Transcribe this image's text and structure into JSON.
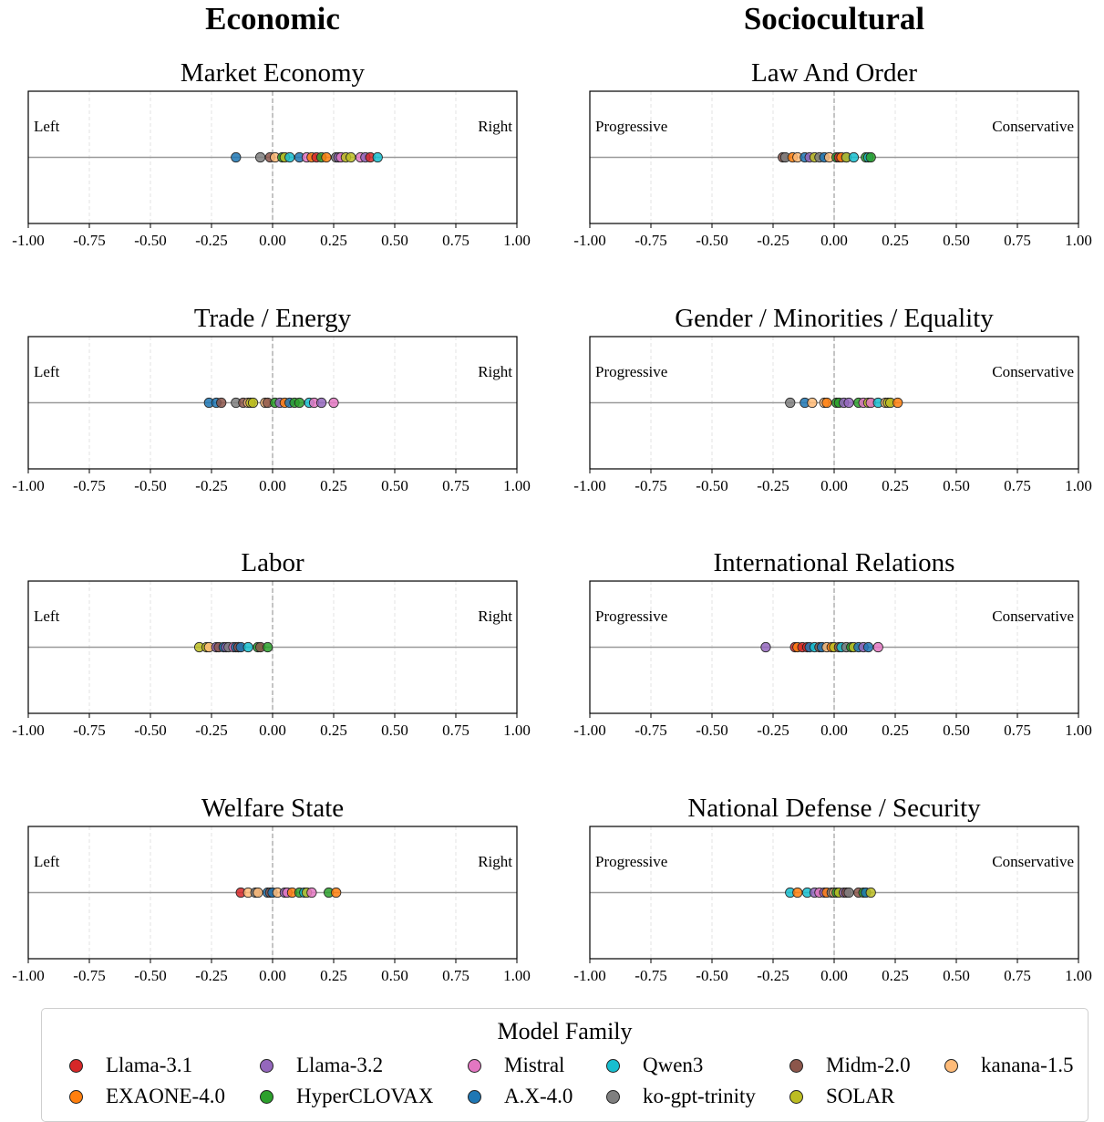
{
  "column_titles": [
    "Economic",
    "Sociocultural"
  ],
  "colors": {
    "Llama-3.1": "#d62728",
    "Llama-3.2": "#9467bd",
    "Mistral": "#e377c2",
    "Qwen3": "#17becf",
    "Midm-2.0": "#8c564b",
    "kanana-1.5": "#ffbb78",
    "EXAONE-4.0": "#ff7f0e",
    "HyperCLOVAX": "#2ca02c",
    "A.X-4.0": "#1f77b4",
    "ko-gpt-trinity": "#7f7f7f",
    "SOLAR": "#bcbd22"
  },
  "legend": {
    "title": "Model Family",
    "items": [
      "Llama-3.1",
      "Llama-3.2",
      "Mistral",
      "Qwen3",
      "Midm-2.0",
      "kanana-1.5",
      "EXAONE-4.0",
      "HyperCLOVAX",
      "A.X-4.0",
      "ko-gpt-trinity",
      "SOLAR"
    ]
  },
  "chart_data": [
    {
      "type": "scatter",
      "title": "Market Economy",
      "column": "Economic",
      "left_label": "Left",
      "right_label": "Right",
      "xlim": [
        -1,
        1
      ],
      "ticks": [
        "-1.00",
        "-0.75",
        "-0.50",
        "-0.25",
        "0.00",
        "0.25",
        "0.50",
        "0.75",
        "1.00"
      ],
      "points": [
        {
          "family": "A.X-4.0",
          "x": -0.15
        },
        {
          "family": "ko-gpt-trinity",
          "x": -0.05
        },
        {
          "family": "Midm-2.0",
          "x": -0.01
        },
        {
          "family": "kanana-1.5",
          "x": 0.01
        },
        {
          "family": "HyperCLOVAX",
          "x": 0.04
        },
        {
          "family": "SOLAR",
          "x": 0.05
        },
        {
          "family": "Qwen3",
          "x": 0.07
        },
        {
          "family": "A.X-4.0",
          "x": 0.11
        },
        {
          "family": "Mistral",
          "x": 0.14
        },
        {
          "family": "EXAONE-4.0",
          "x": 0.16
        },
        {
          "family": "Llama-3.1",
          "x": 0.18
        },
        {
          "family": "HyperCLOVAX",
          "x": 0.2
        },
        {
          "family": "EXAONE-4.0",
          "x": 0.22
        },
        {
          "family": "ko-gpt-trinity",
          "x": 0.26
        },
        {
          "family": "Llama-3.2",
          "x": 0.27
        },
        {
          "family": "Mistral",
          "x": 0.28
        },
        {
          "family": "SOLAR",
          "x": 0.3
        },
        {
          "family": "SOLAR",
          "x": 0.32
        },
        {
          "family": "Mistral",
          "x": 0.36
        },
        {
          "family": "Llama-3.2",
          "x": 0.38
        },
        {
          "family": "Llama-3.1",
          "x": 0.4
        },
        {
          "family": "Qwen3",
          "x": 0.43
        }
      ]
    },
    {
      "type": "scatter",
      "title": "Law And Order",
      "column": "Sociocultural",
      "left_label": "Progressive",
      "right_label": "Conservative",
      "xlim": [
        -1,
        1
      ],
      "ticks": [
        "-1.00",
        "-0.75",
        "-0.50",
        "-0.25",
        "0.00",
        "0.25",
        "0.50",
        "0.75",
        "1.00"
      ],
      "points": [
        {
          "family": "Midm-2.0",
          "x": -0.21
        },
        {
          "family": "ko-gpt-trinity",
          "x": -0.2
        },
        {
          "family": "EXAONE-4.0",
          "x": -0.17
        },
        {
          "family": "kanana-1.5",
          "x": -0.15
        },
        {
          "family": "A.X-4.0",
          "x": -0.12
        },
        {
          "family": "Llama-3.2",
          "x": -0.1
        },
        {
          "family": "SOLAR",
          "x": -0.08
        },
        {
          "family": "ko-gpt-trinity",
          "x": -0.06
        },
        {
          "family": "A.X-4.0",
          "x": -0.04
        },
        {
          "family": "kanana-1.5",
          "x": -0.02
        },
        {
          "family": "HyperCLOVAX",
          "x": 0.01
        },
        {
          "family": "Llama-3.1",
          "x": 0.02
        },
        {
          "family": "EXAONE-4.0",
          "x": 0.03
        },
        {
          "family": "A.X-4.0",
          "x": 0.05
        },
        {
          "family": "SOLAR",
          "x": 0.05
        },
        {
          "family": "Qwen3",
          "x": 0.08
        },
        {
          "family": "HyperCLOVAX",
          "x": 0.13
        },
        {
          "family": "Qwen3",
          "x": 0.14
        },
        {
          "family": "HyperCLOVAX",
          "x": 0.15
        }
      ]
    },
    {
      "type": "scatter",
      "title": "Trade / Energy",
      "column": "Economic",
      "left_label": "Left",
      "right_label": "Right",
      "xlim": [
        -1,
        1
      ],
      "ticks": [
        "-1.00",
        "-0.75",
        "-0.50",
        "-0.25",
        "0.00",
        "0.25",
        "0.50",
        "0.75",
        "1.00"
      ],
      "points": [
        {
          "family": "A.X-4.0",
          "x": -0.26
        },
        {
          "family": "A.X-4.0",
          "x": -0.23
        },
        {
          "family": "Midm-2.0",
          "x": -0.21
        },
        {
          "family": "ko-gpt-trinity",
          "x": -0.15
        },
        {
          "family": "Midm-2.0",
          "x": -0.12
        },
        {
          "family": "kanana-1.5",
          "x": -0.1
        },
        {
          "family": "SOLAR",
          "x": -0.09
        },
        {
          "family": "SOLAR",
          "x": -0.08
        },
        {
          "family": "kanana-1.5",
          "x": -0.03
        },
        {
          "family": "Midm-2.0",
          "x": -0.02
        },
        {
          "family": "HyperCLOVAX",
          "x": 0.01
        },
        {
          "family": "Llama-3.2",
          "x": 0.03
        },
        {
          "family": "EXAONE-4.0",
          "x": 0.05
        },
        {
          "family": "A.X-4.0",
          "x": 0.07
        },
        {
          "family": "HyperCLOVAX",
          "x": 0.09
        },
        {
          "family": "HyperCLOVAX",
          "x": 0.11
        },
        {
          "family": "Qwen3",
          "x": 0.15
        },
        {
          "family": "Mistral",
          "x": 0.17
        },
        {
          "family": "Llama-3.2",
          "x": 0.2
        },
        {
          "family": "Mistral",
          "x": 0.25
        }
      ]
    },
    {
      "type": "scatter",
      "title": "Gender / Minorities / Equality",
      "column": "Sociocultural",
      "left_label": "Progressive",
      "right_label": "Conservative",
      "xlim": [
        -1,
        1
      ],
      "ticks": [
        "-1.00",
        "-0.75",
        "-0.50",
        "-0.25",
        "0.00",
        "0.25",
        "0.50",
        "0.75",
        "1.00"
      ],
      "points": [
        {
          "family": "ko-gpt-trinity",
          "x": -0.18
        },
        {
          "family": "A.X-4.0",
          "x": -0.12
        },
        {
          "family": "kanana-1.5",
          "x": -0.09
        },
        {
          "family": "kanana-1.5",
          "x": -0.04
        },
        {
          "family": "EXAONE-4.0",
          "x": -0.03
        },
        {
          "family": "HyperCLOVAX",
          "x": 0.01
        },
        {
          "family": "HyperCLOVAX",
          "x": 0.02
        },
        {
          "family": "Llama-3.2",
          "x": 0.04
        },
        {
          "family": "Llama-3.2",
          "x": 0.06
        },
        {
          "family": "HyperCLOVAX",
          "x": 0.1
        },
        {
          "family": "Mistral",
          "x": 0.12
        },
        {
          "family": "SOLAR",
          "x": 0.14
        },
        {
          "family": "Mistral",
          "x": 0.15
        },
        {
          "family": "Qwen3",
          "x": 0.18
        },
        {
          "family": "kanana-1.5",
          "x": 0.21
        },
        {
          "family": "SOLAR",
          "x": 0.22
        },
        {
          "family": "SOLAR",
          "x": 0.23
        },
        {
          "family": "EXAONE-4.0",
          "x": 0.26
        }
      ]
    },
    {
      "type": "scatter",
      "title": "Labor",
      "column": "Economic",
      "left_label": "Left",
      "right_label": "Right",
      "xlim": [
        -1,
        1
      ],
      "ticks": [
        "-1.00",
        "-0.75",
        "-0.50",
        "-0.25",
        "0.00",
        "0.25",
        "0.50",
        "0.75",
        "1.00"
      ],
      "points": [
        {
          "family": "SOLAR",
          "x": -0.3
        },
        {
          "family": "SOLAR",
          "x": -0.27
        },
        {
          "family": "kanana-1.5",
          "x": -0.26
        },
        {
          "family": "Llama-3.2",
          "x": -0.23
        },
        {
          "family": "Midm-2.0",
          "x": -0.22
        },
        {
          "family": "A.X-4.0",
          "x": -0.2
        },
        {
          "family": "Llama-3.2",
          "x": -0.19
        },
        {
          "family": "ko-gpt-trinity",
          "x": -0.18
        },
        {
          "family": "Mistral",
          "x": -0.16
        },
        {
          "family": "A.X-4.0",
          "x": -0.15
        },
        {
          "family": "Llama-3.2",
          "x": -0.14
        },
        {
          "family": "Midm-2.0",
          "x": -0.14
        },
        {
          "family": "A.X-4.0",
          "x": -0.13
        },
        {
          "family": "Qwen3",
          "x": -0.1
        },
        {
          "family": "HyperCLOVAX",
          "x": -0.06
        },
        {
          "family": "Midm-2.0",
          "x": -0.05
        },
        {
          "family": "HyperCLOVAX",
          "x": -0.02
        }
      ]
    },
    {
      "type": "scatter",
      "title": "International Relations",
      "column": "Sociocultural",
      "left_label": "Progressive",
      "right_label": "Conservative",
      "xlim": [
        -1,
        1
      ],
      "ticks": [
        "-1.00",
        "-0.75",
        "-0.50",
        "-0.25",
        "0.00",
        "0.25",
        "0.50",
        "0.75",
        "1.00"
      ],
      "points": [
        {
          "family": "Llama-3.2",
          "x": -0.28
        },
        {
          "family": "Llama-3.1",
          "x": -0.16
        },
        {
          "family": "EXAONE-4.0",
          "x": -0.15
        },
        {
          "family": "Llama-3.1",
          "x": -0.13
        },
        {
          "family": "Llama-3.1",
          "x": -0.11
        },
        {
          "family": "A.X-4.0",
          "x": -0.1
        },
        {
          "family": "Qwen3",
          "x": -0.08
        },
        {
          "family": "Midm-2.0",
          "x": -0.06
        },
        {
          "family": "A.X-4.0",
          "x": -0.05
        },
        {
          "family": "kanana-1.5",
          "x": -0.03
        },
        {
          "family": "EXAONE-4.0",
          "x": -0.01
        },
        {
          "family": "SOLAR",
          "x": 0.0
        },
        {
          "family": "Midm-2.0",
          "x": 0.02
        },
        {
          "family": "Qwen3",
          "x": 0.03
        },
        {
          "family": "ko-gpt-trinity",
          "x": 0.05
        },
        {
          "family": "HyperCLOVAX",
          "x": 0.07
        },
        {
          "family": "SOLAR",
          "x": 0.08
        },
        {
          "family": "A.X-4.0",
          "x": 0.1
        },
        {
          "family": "Llama-3.2",
          "x": 0.12
        },
        {
          "family": "A.X-4.0",
          "x": 0.14
        },
        {
          "family": "Mistral",
          "x": 0.18
        }
      ]
    },
    {
      "type": "scatter",
      "title": "Welfare State",
      "column": "Economic",
      "left_label": "Left",
      "right_label": "Right",
      "xlim": [
        -1,
        1
      ],
      "ticks": [
        "-1.00",
        "-0.75",
        "-0.50",
        "-0.25",
        "0.00",
        "0.25",
        "0.50",
        "0.75",
        "1.00"
      ],
      "points": [
        {
          "family": "Llama-3.1",
          "x": -0.13
        },
        {
          "family": "kanana-1.5",
          "x": -0.1
        },
        {
          "family": "ko-gpt-trinity",
          "x": -0.07
        },
        {
          "family": "kanana-1.5",
          "x": -0.06
        },
        {
          "family": "A.X-4.0",
          "x": -0.02
        },
        {
          "family": "Midm-2.0",
          "x": -0.01
        },
        {
          "family": "A.X-4.0",
          "x": 0.0
        },
        {
          "family": "kanana-1.5",
          "x": 0.02
        },
        {
          "family": "Llama-3.2",
          "x": 0.05
        },
        {
          "family": "Mistral",
          "x": 0.06
        },
        {
          "family": "EXAONE-4.0",
          "x": 0.08
        },
        {
          "family": "HyperCLOVAX",
          "x": 0.11
        },
        {
          "family": "Qwen3",
          "x": 0.13
        },
        {
          "family": "SOLAR",
          "x": 0.14
        },
        {
          "family": "Mistral",
          "x": 0.16
        },
        {
          "family": "HyperCLOVAX",
          "x": 0.23
        },
        {
          "family": "EXAONE-4.0",
          "x": 0.26
        }
      ]
    },
    {
      "type": "scatter",
      "title": "National Defense / Security",
      "column": "Sociocultural",
      "left_label": "Progressive",
      "right_label": "Conservative",
      "xlim": [
        -1,
        1
      ],
      "ticks": [
        "-1.00",
        "-0.75",
        "-0.50",
        "-0.25",
        "0.00",
        "0.25",
        "0.50",
        "0.75",
        "1.00"
      ],
      "points": [
        {
          "family": "Qwen3",
          "x": -0.18
        },
        {
          "family": "EXAONE-4.0",
          "x": -0.15
        },
        {
          "family": "Qwen3",
          "x": -0.11
        },
        {
          "family": "Llama-3.2",
          "x": -0.08
        },
        {
          "family": "Mistral",
          "x": -0.06
        },
        {
          "family": "Llama-3.2",
          "x": -0.04
        },
        {
          "family": "EXAONE-4.0",
          "x": -0.03
        },
        {
          "family": "ko-gpt-trinity",
          "x": -0.01
        },
        {
          "family": "kanana-1.5",
          "x": 0.0
        },
        {
          "family": "HyperCLOVAX",
          "x": 0.01
        },
        {
          "family": "SOLAR",
          "x": 0.02
        },
        {
          "family": "Llama-3.2",
          "x": 0.04
        },
        {
          "family": "Midm-2.0",
          "x": 0.05
        },
        {
          "family": "ko-gpt-trinity",
          "x": 0.06
        },
        {
          "family": "Midm-2.0",
          "x": 0.1
        },
        {
          "family": "HyperCLOVAX",
          "x": 0.12
        },
        {
          "family": "A.X-4.0",
          "x": 0.13
        },
        {
          "family": "SOLAR",
          "x": 0.15
        }
      ]
    }
  ]
}
